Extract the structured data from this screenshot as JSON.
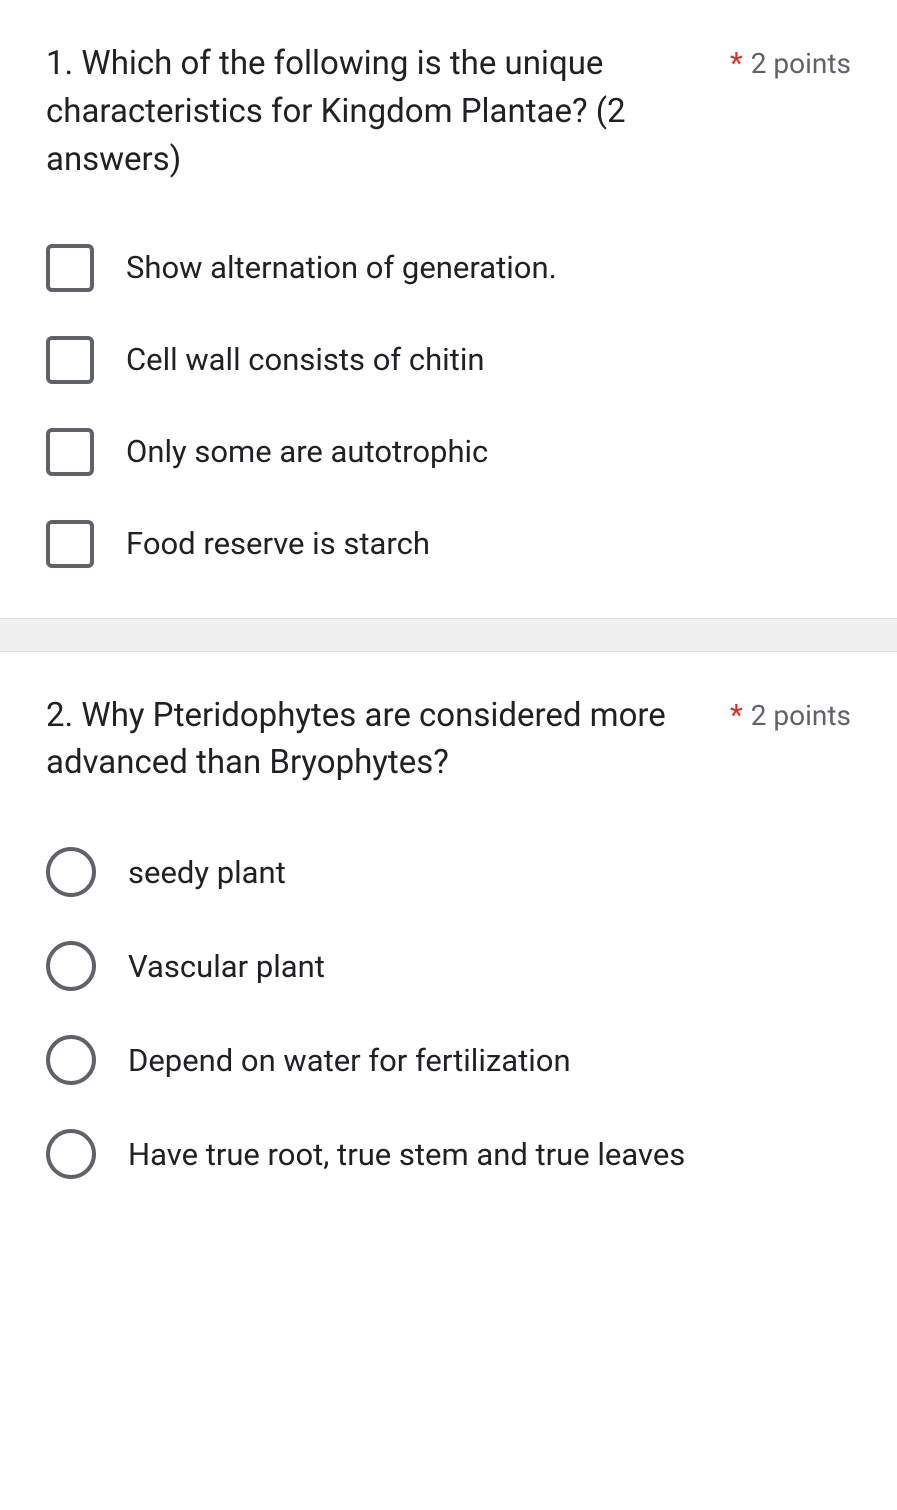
{
  "questions": [
    {
      "text": "1. Which of the following is the unique characteristics for Kingdom Plantae? (2 answers)",
      "required_mark": "*",
      "points": "2 points",
      "type": "checkbox",
      "options": [
        "Show alternation of generation.",
        "Cell wall consists of chitin",
        "Only some are autotrophic",
        "Food reserve is starch"
      ]
    },
    {
      "text": "2. Why Pteridophytes are considered more advanced than Bryophytes?",
      "required_mark": "*",
      "points": "2 points",
      "type": "radio",
      "options": [
        "seedy plant",
        "Vascular plant",
        "Depend on water for fertilization",
        "Have true root, true stem and true leaves"
      ]
    }
  ],
  "colors": {
    "text": "#202124",
    "muted": "#5f6368",
    "required": "#d93025",
    "divider_bg": "#f0f0f0",
    "border": "#e0e0e0"
  }
}
